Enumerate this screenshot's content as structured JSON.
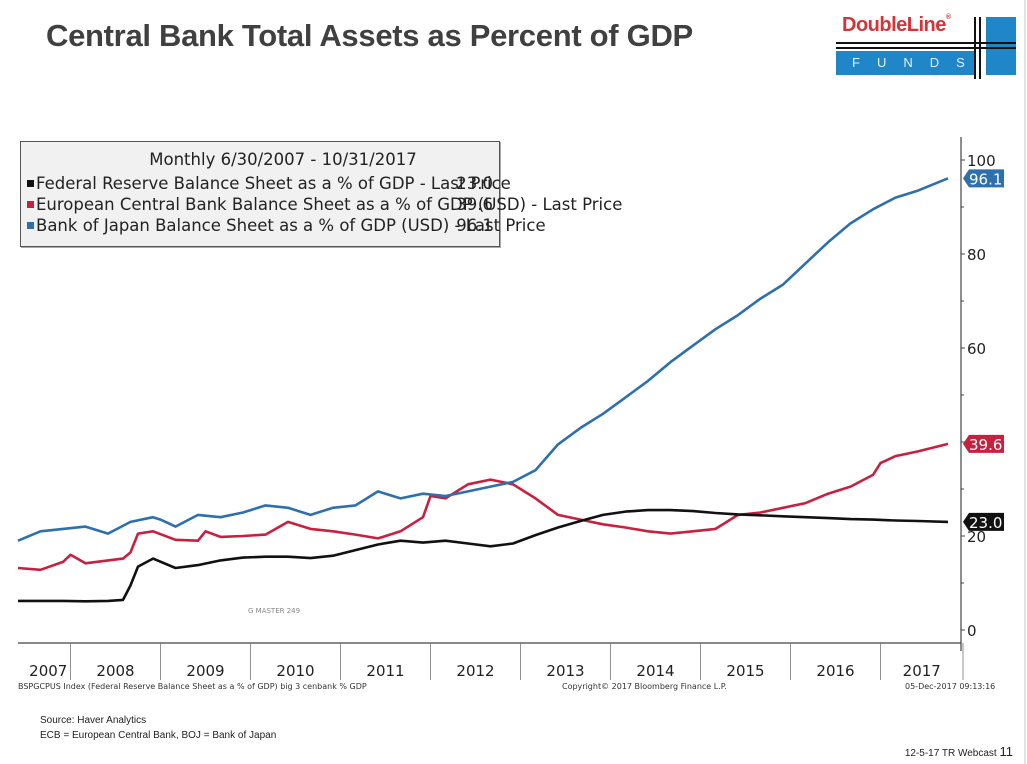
{
  "page": {
    "title": "Central Bank Total Assets as Percent of GDP",
    "logo": {
      "brand": "DoubleLine",
      "registered": "®",
      "sub": "FUNDS",
      "brand_color": "#d3343a",
      "accent_color": "#1f86c8"
    },
    "source": "Source: Haver Analytics",
    "abbreviations": "ECB = European Central Bank, BOJ = Bank of Japan",
    "footer_label": "12-5-17 TR Webcast",
    "page_number": "11"
  },
  "bloomberg": {
    "index_note": "BSPGCPUS Index (Federal Reserve Balance Sheet as a % of GDP) big 3 cenbank % GDP",
    "copyright": "Copyright© 2017 Bloomberg Finance L.P.",
    "timestamp": "05-Dec-2017 09:13:16",
    "watermark": "G MASTER 249"
  },
  "chart_data": {
    "type": "line",
    "title": "Monthly 6/30/2007 - 10/31/2017",
    "xlabel": "",
    "ylabel": "",
    "x_range": [
      "2007-06",
      "2017-10"
    ],
    "ylim": [
      0,
      105
    ],
    "y_ticks": [
      0,
      20,
      40,
      60,
      80,
      100
    ],
    "y_tick_labels": [
      "0",
      "20",
      "",
      "60",
      "80",
      "100"
    ],
    "x_tick_labels": [
      "2007",
      "2008",
      "2009",
      "2010",
      "2011",
      "2012",
      "2013",
      "2014",
      "2015",
      "2016",
      "2017"
    ],
    "y_axis_side": "right",
    "grid": false,
    "legend_position": "top-left",
    "series": [
      {
        "name": "Federal Reserve Balance Sheet as a % of GDP - Last Price",
        "color": "#111111",
        "last_value": "23.0",
        "x": [
          "2007-06",
          "2007-09",
          "2007-12",
          "2008-03",
          "2008-06",
          "2008-08",
          "2008-09",
          "2008-10",
          "2008-12",
          "2009-03",
          "2009-06",
          "2009-09",
          "2009-12",
          "2010-03",
          "2010-06",
          "2010-09",
          "2010-12",
          "2011-03",
          "2011-06",
          "2011-09",
          "2011-12",
          "2012-03",
          "2012-06",
          "2012-09",
          "2012-12",
          "2013-03",
          "2013-06",
          "2013-09",
          "2013-12",
          "2014-03",
          "2014-06",
          "2014-09",
          "2014-12",
          "2015-03",
          "2015-06",
          "2015-09",
          "2015-12",
          "2016-03",
          "2016-06",
          "2016-09",
          "2016-12",
          "2017-03",
          "2017-06",
          "2017-10"
        ],
        "values": [
          6.2,
          6.2,
          6.2,
          6.1,
          6.2,
          6.4,
          9.5,
          13.5,
          15.2,
          13.2,
          13.8,
          14.8,
          15.4,
          15.6,
          15.6,
          15.3,
          15.8,
          17.0,
          18.2,
          19.0,
          18.6,
          19.0,
          18.4,
          17.8,
          18.4,
          20.2,
          21.8,
          23.2,
          24.5,
          25.2,
          25.5,
          25.5,
          25.3,
          24.9,
          24.6,
          24.4,
          24.2,
          24.0,
          23.8,
          23.6,
          23.5,
          23.3,
          23.2,
          23.0
        ]
      },
      {
        "name": "European Central Bank Balance Sheet as a % of GDP (USD) - Last Price",
        "color": "#c8203f",
        "last_value": "39.6",
        "x": [
          "2007-06",
          "2007-09",
          "2007-12",
          "2008-01",
          "2008-03",
          "2008-06",
          "2008-08",
          "2008-09",
          "2008-10",
          "2008-12",
          "2009-03",
          "2009-06",
          "2009-07",
          "2009-09",
          "2009-12",
          "2010-03",
          "2010-06",
          "2010-09",
          "2010-12",
          "2011-03",
          "2011-06",
          "2011-09",
          "2011-12",
          "2012-01",
          "2012-03",
          "2012-06",
          "2012-09",
          "2012-12",
          "2013-03",
          "2013-06",
          "2013-09",
          "2013-12",
          "2014-03",
          "2014-06",
          "2014-09",
          "2014-12",
          "2015-03",
          "2015-06",
          "2015-09",
          "2015-12",
          "2016-03",
          "2016-06",
          "2016-09",
          "2016-12",
          "2017-01",
          "2017-03",
          "2017-06",
          "2017-10"
        ],
        "values": [
          13.2,
          12.8,
          14.5,
          16.0,
          14.2,
          14.8,
          15.2,
          16.5,
          20.5,
          21.0,
          19.2,
          19.0,
          21.0,
          19.8,
          20.0,
          20.3,
          23.0,
          21.5,
          21.0,
          20.3,
          19.5,
          21.0,
          24.0,
          28.5,
          28.0,
          31.0,
          32.0,
          31.0,
          28.0,
          24.5,
          23.5,
          22.5,
          21.8,
          21.0,
          20.5,
          21.0,
          21.5,
          24.5,
          25.0,
          26.0,
          27.0,
          29.0,
          30.5,
          33.0,
          35.5,
          37.0,
          38.0,
          39.6
        ]
      },
      {
        "name": "Bank of Japan Balance Sheet as a % of GDP (USD) - Last Price",
        "color": "#2e6fae",
        "last_value": "96.1",
        "x": [
          "2007-06",
          "2007-09",
          "2007-12",
          "2008-03",
          "2008-06",
          "2008-09",
          "2008-12",
          "2009-01",
          "2009-03",
          "2009-06",
          "2009-09",
          "2009-12",
          "2010-03",
          "2010-06",
          "2010-09",
          "2010-12",
          "2011-03",
          "2011-06",
          "2011-09",
          "2011-12",
          "2012-03",
          "2012-06",
          "2012-09",
          "2012-12",
          "2013-03",
          "2013-06",
          "2013-09",
          "2013-12",
          "2014-03",
          "2014-06",
          "2014-09",
          "2014-12",
          "2015-03",
          "2015-06",
          "2015-09",
          "2015-12",
          "2016-03",
          "2016-06",
          "2016-09",
          "2016-12",
          "2017-03",
          "2017-06",
          "2017-10"
        ],
        "values": [
          19.0,
          21.0,
          21.5,
          22.0,
          20.5,
          23.0,
          24.0,
          23.5,
          22.0,
          24.5,
          24.0,
          25.0,
          26.5,
          26.0,
          24.5,
          26.0,
          26.5,
          29.5,
          28.0,
          29.0,
          28.5,
          29.5,
          30.5,
          31.5,
          34.0,
          39.5,
          43.0,
          46.0,
          49.5,
          53.0,
          57.0,
          60.5,
          64.0,
          67.0,
          70.5,
          73.5,
          78.0,
          82.5,
          86.5,
          89.5,
          92.0,
          93.5,
          96.1
        ]
      }
    ]
  }
}
